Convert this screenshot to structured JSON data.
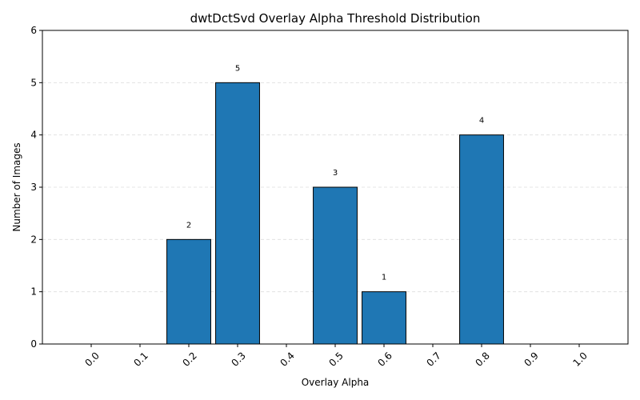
{
  "chart_data": {
    "type": "bar",
    "title": "dwtDctSvd Overlay Alpha Threshold Distribution",
    "xlabel": "Overlay Alpha",
    "ylabel": "Number of Images",
    "categories": [
      "0.0",
      "0.1",
      "0.2",
      "0.3",
      "0.4",
      "0.5",
      "0.6",
      "0.7",
      "0.8",
      "0.9",
      "1.0"
    ],
    "values": [
      0,
      0,
      2,
      5,
      0,
      3,
      1,
      0,
      4,
      0,
      0
    ],
    "data_labels": [
      "",
      "",
      "2",
      "5",
      "",
      "3",
      "1",
      "",
      "4",
      "",
      ""
    ],
    "ylim": [
      0,
      6
    ],
    "yticks": [
      "0",
      "1",
      "2",
      "3",
      "4",
      "5",
      "6"
    ],
    "grid": "y-dashed",
    "bar_color": "#1f77b4",
    "legend": "none"
  }
}
